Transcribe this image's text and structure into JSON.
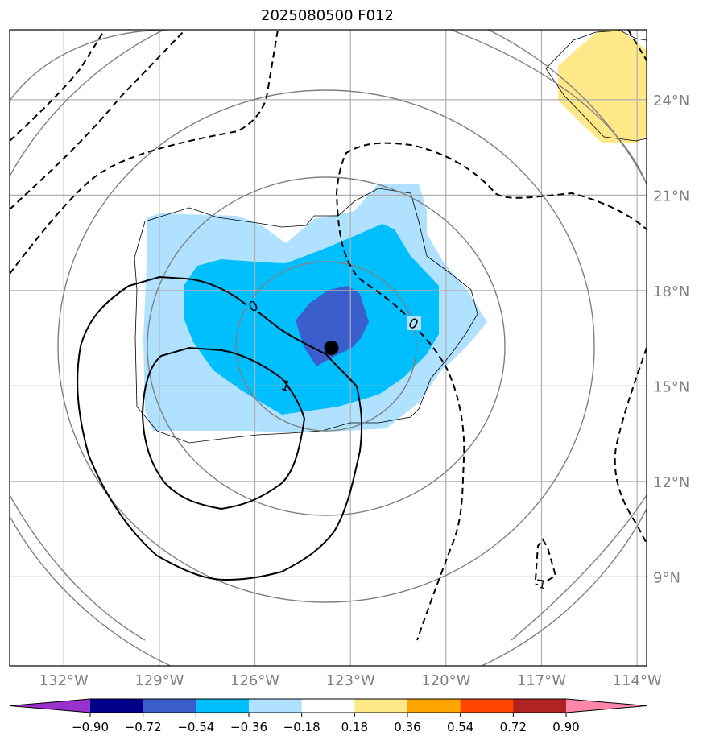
{
  "chart_data": {
    "type": "contour_map",
    "title": "2025080500 F012",
    "x_axis": {
      "ticks": [
        -132,
        -129,
        -126,
        -123,
        -120,
        -117,
        -114
      ],
      "tick_labels": [
        "132°W",
        "129°W",
        "126°W",
        "123°W",
        "120°W",
        "117°W",
        "114°W"
      ],
      "range": [
        -133.7,
        -113.7
      ]
    },
    "y_axis": {
      "ticks": [
        9,
        12,
        15,
        18,
        21,
        24
      ],
      "tick_labels": [
        "9°N",
        "12°N",
        "15°N",
        "18°N",
        "21°N",
        "24°N"
      ],
      "range": [
        6.2,
        26.2
      ]
    },
    "grid": true,
    "colorbar": {
      "levels": [
        -0.9,
        -0.72,
        -0.54,
        -0.36,
        -0.18,
        0.18,
        0.36,
        0.54,
        0.72,
        0.9
      ],
      "tick_labels": [
        "−0.90",
        "−0.72",
        "−0.54",
        "−0.36",
        "−0.18",
        "0.18",
        "0.36",
        "0.54",
        "0.72",
        "0.90"
      ],
      "colors": [
        "#9932CC",
        "#00008B",
        "#3A5FCD",
        "#00BFFF",
        "#B0E2FF",
        "#FFFFFF",
        "#FFE888",
        "#FFA500",
        "#FF4500",
        "#B22222",
        "#FF88AA"
      ]
    },
    "contour_labels": [
      "0",
      "0",
      "1",
      "-1"
    ],
    "marker": {
      "lon": -123.6,
      "lat": 16.2,
      "label": ""
    }
  }
}
